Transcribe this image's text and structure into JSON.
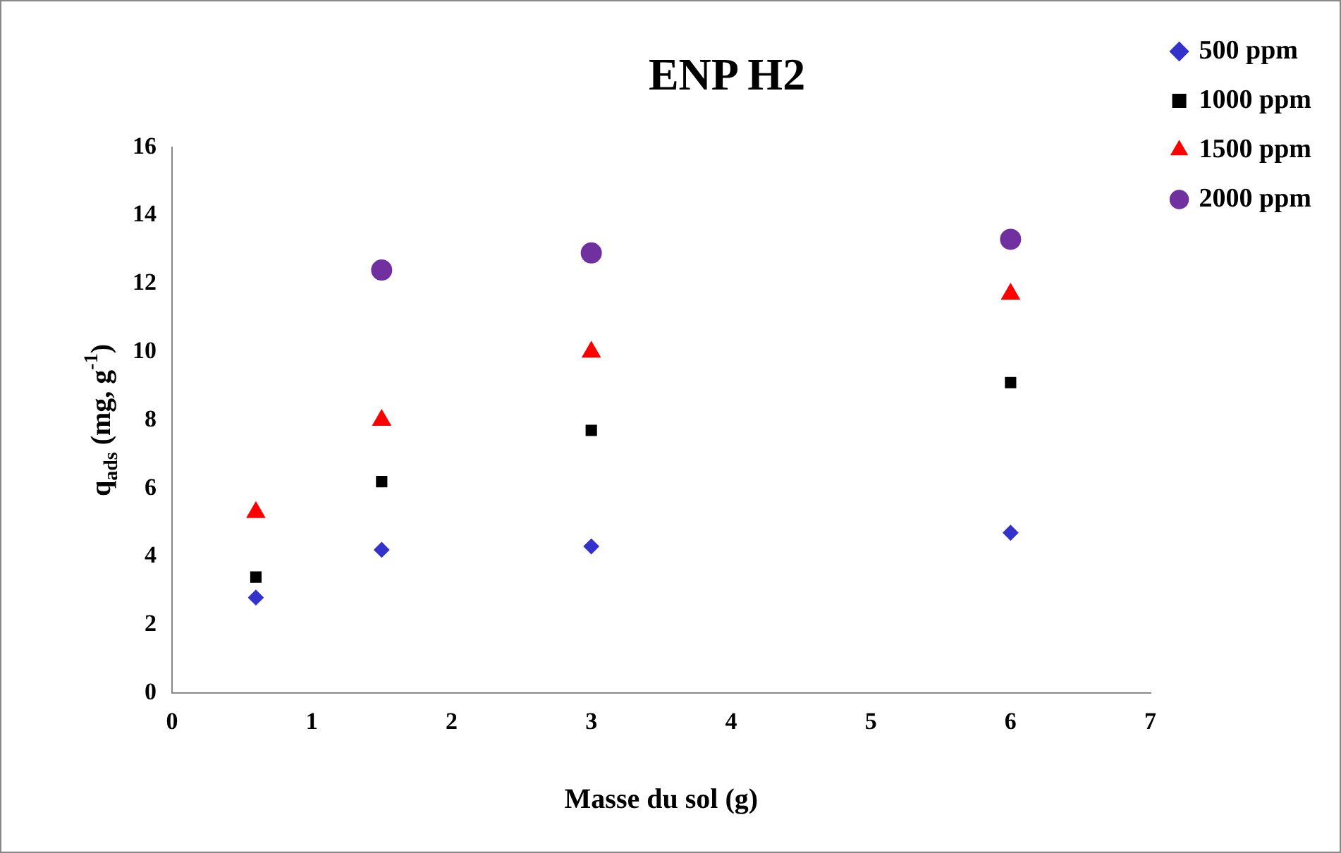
{
  "chart_data": {
    "type": "scatter",
    "title": "ENP H2",
    "xlabel": "Masse du sol (g)",
    "ylabel": "q$_{ads}$ (mg, g$^{-1}$)",
    "xlim": [
      0,
      7
    ],
    "xticks": [
      0,
      1,
      2,
      3,
      4,
      5,
      6,
      7
    ],
    "ylim": [
      0,
      16
    ],
    "yticks": [
      0,
      2,
      4,
      6,
      8,
      10,
      12,
      14,
      16
    ],
    "grid": false,
    "legend": "right",
    "series": [
      {
        "name": "500 ppm",
        "color": "#3333cc",
        "marker": "diamond",
        "x": [
          0.6,
          1.5,
          3,
          6
        ],
        "values": [
          2.8,
          4.2,
          4.3,
          4.7
        ]
      },
      {
        "name": "1000 ppm",
        "color": "#000000",
        "marker": "square",
        "x": [
          0.6,
          1.5,
          3,
          6
        ],
        "values": [
          3.4,
          6.2,
          7.7,
          9.1
        ]
      },
      {
        "name": "1500 ppm",
        "color": "#ff0000",
        "marker": "triangle",
        "x": [
          0.6,
          1.5,
          3,
          6
        ],
        "values": [
          5.3,
          8.0,
          10.0,
          11.7
        ]
      },
      {
        "name": "2000 ppm",
        "color": "#7030a0",
        "marker": "circle",
        "x": [
          1.5,
          3,
          6
        ],
        "values": [
          12.4,
          12.9,
          13.3
        ]
      }
    ]
  }
}
